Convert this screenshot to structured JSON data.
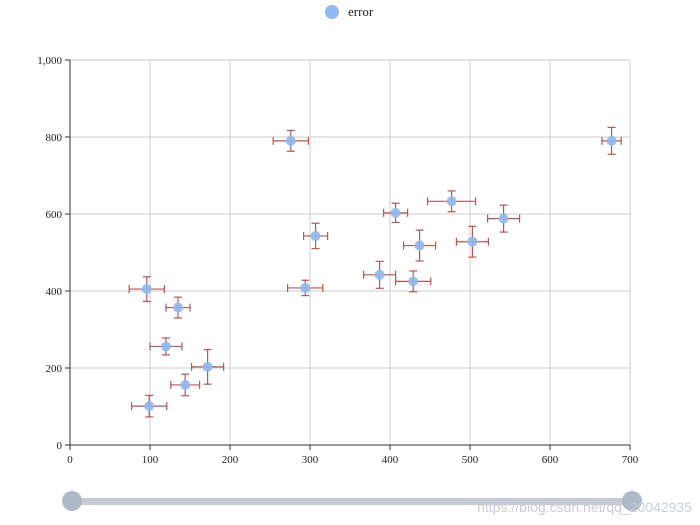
{
  "colors": {
    "point": "#8fb8ee",
    "error_bar": "#b35757",
    "grid": "#cccccc",
    "axis": "#333333",
    "slider_track": "#c4cbd6",
    "slider_handle": "#aeb8c7"
  },
  "chart_data": {
    "type": "scatter",
    "title": "",
    "legend": {
      "label": "error",
      "position": "top-center"
    },
    "xlabel": "",
    "ylabel": "",
    "xlim": [
      0,
      700
    ],
    "ylim": [
      0,
      1000
    ],
    "x_ticks": [
      0,
      100,
      200,
      300,
      400,
      500,
      600,
      700
    ],
    "y_ticks": [
      0,
      200,
      400,
      600,
      800,
      1000
    ],
    "x_tick_labels": [
      "0",
      "100",
      "200",
      "300",
      "400",
      "500",
      "600",
      "700"
    ],
    "y_tick_labels": [
      "0",
      "200",
      "400",
      "600",
      "800",
      "1,000"
    ],
    "grid": true,
    "series": [
      {
        "name": "error",
        "points": [
          {
            "x": 99,
            "y": 101,
            "xerr": 22,
            "yerr": 28
          },
          {
            "x": 144,
            "y": 156,
            "xerr": 18,
            "yerr": 28
          },
          {
            "x": 172,
            "y": 203,
            "xerr": 20,
            "yerr": 45
          },
          {
            "x": 120,
            "y": 256,
            "xerr": 20,
            "yerr": 22
          },
          {
            "x": 135,
            "y": 357,
            "xerr": 15,
            "yerr": 27
          },
          {
            "x": 96,
            "y": 405,
            "xerr": 22,
            "yerr": 32
          },
          {
            "x": 294,
            "y": 408,
            "xerr": 22,
            "yerr": 20
          },
          {
            "x": 307,
            "y": 543,
            "xerr": 15,
            "yerr": 33
          },
          {
            "x": 276,
            "y": 790,
            "xerr": 22,
            "yerr": 27
          },
          {
            "x": 387,
            "y": 442,
            "xerr": 20,
            "yerr": 35
          },
          {
            "x": 429,
            "y": 425,
            "xerr": 22,
            "yerr": 27
          },
          {
            "x": 437,
            "y": 518,
            "xerr": 20,
            "yerr": 40
          },
          {
            "x": 407,
            "y": 603,
            "xerr": 15,
            "yerr": 25
          },
          {
            "x": 477,
            "y": 633,
            "xerr": 30,
            "yerr": 27
          },
          {
            "x": 503,
            "y": 528,
            "xerr": 20,
            "yerr": 40
          },
          {
            "x": 542,
            "y": 588,
            "xerr": 20,
            "yerr": 35
          },
          {
            "x": 677,
            "y": 790,
            "xerr": 12,
            "yerr": 35
          }
        ]
      }
    ]
  },
  "slider": {
    "start": 0,
    "end": 1
  },
  "watermark": "https://blog.csdn.net/qq_20042935"
}
